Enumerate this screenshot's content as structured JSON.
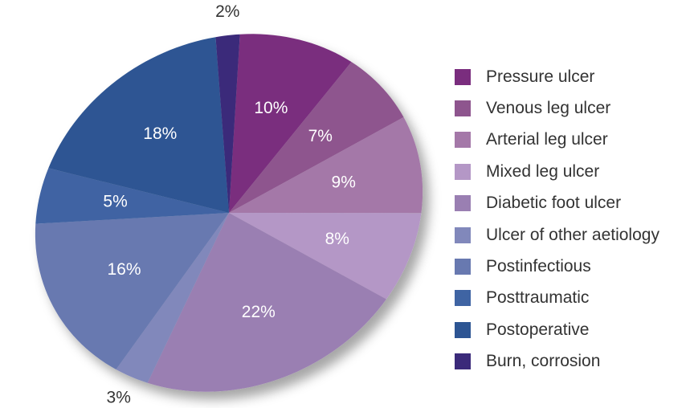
{
  "chart_data": {
    "type": "pie",
    "title": "",
    "labels": [
      "Pressure ulcer",
      "Venous leg ulcer",
      "Arterial leg ulcer",
      "Mixed leg ulcer",
      "Diabetic foot ulcer",
      "Ulcer of other aetiology",
      "Postinfectious",
      "Posttraumatic",
      "Postoperative",
      "Burn, corrosion"
    ],
    "values": [
      10,
      7,
      9,
      8,
      22,
      3,
      16,
      5,
      18,
      2
    ],
    "value_labels": [
      "10%",
      "7%",
      "9%",
      "8%",
      "22%",
      "3%",
      "16%",
      "5%",
      "18%",
      "2%"
    ],
    "colors": [
      "#7a2d7e",
      "#8e558e",
      "#a478a8",
      "#b497c6",
      "#9a7fb2",
      "#8188bb",
      "#6879b0",
      "#3f64a3",
      "#2d5593",
      "#3b2a7a"
    ],
    "legend_position": "right"
  }
}
